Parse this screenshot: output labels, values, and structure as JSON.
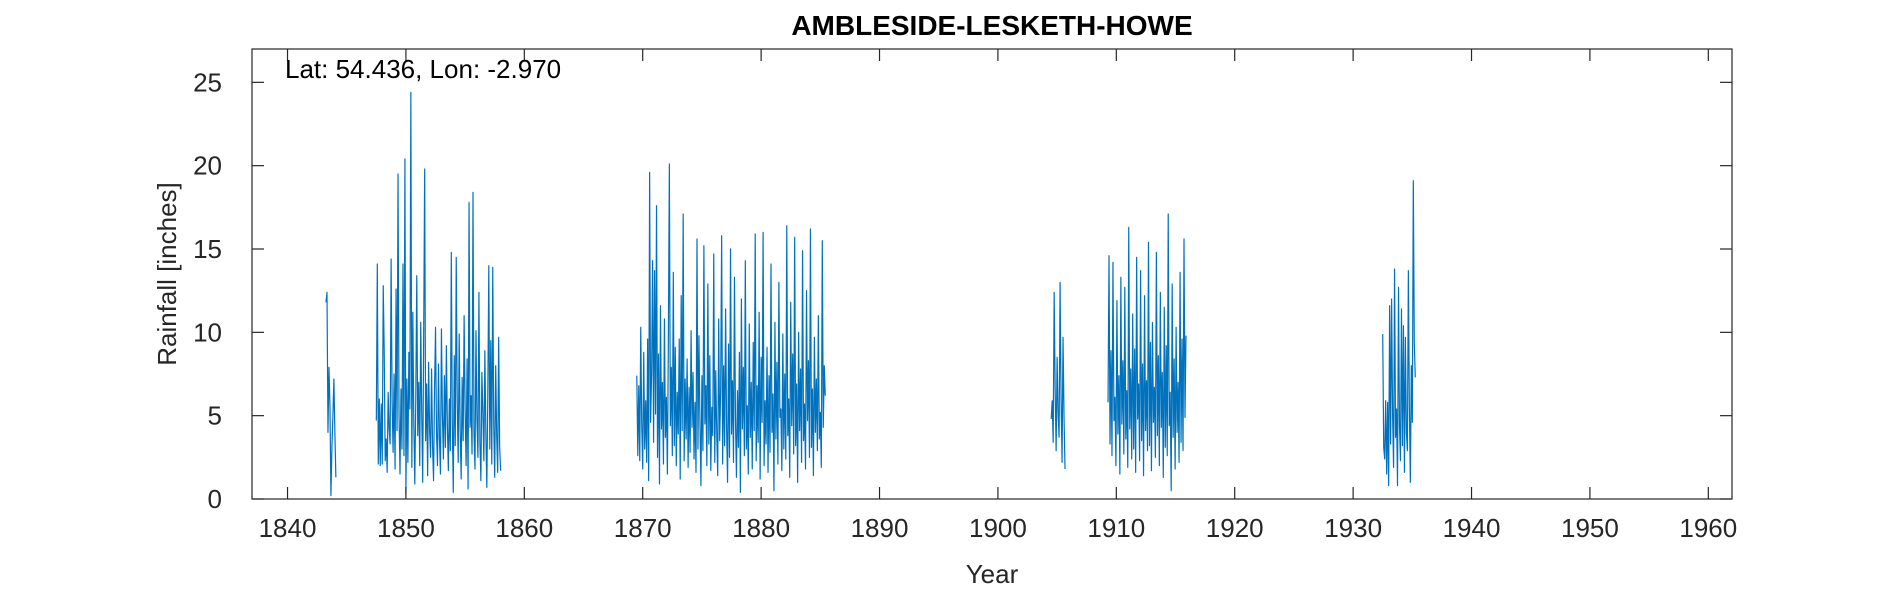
{
  "chart_data": {
    "type": "line",
    "title": "AMBLESIDE-LESKETH-HOWE",
    "xlabel": "Year",
    "ylabel": "Rainfall [inches]",
    "annotation": "Lat: 54.436, Lon: -2.970",
    "xlim": [
      1837,
      1962
    ],
    "ylim": [
      0,
      27
    ],
    "xticks": [
      1840,
      1850,
      1860,
      1870,
      1880,
      1890,
      1900,
      1910,
      1920,
      1930,
      1940,
      1950,
      1960
    ],
    "yticks": [
      0,
      5,
      10,
      15,
      20,
      25
    ],
    "grid": false,
    "line_color": "#0072BD",
    "series_points": "monthly values, approximate reading of the plotted line",
    "segments": [
      {
        "start": 1843.25,
        "values": [
          11.8,
          12.4,
          4.0,
          7.9,
          5.6,
          0.2,
          3.1,
          5.0,
          7.2,
          4.0,
          1.3
        ]
      },
      {
        "start": 1847.5,
        "values": [
          4.7,
          14.1,
          2.1,
          6.0,
          2.0,
          5.7,
          2.1,
          12.8,
          8.9,
          2.3,
          3.6,
          1.6,
          6.4,
          4.2,
          3.3,
          14.4,
          5.9,
          2.8,
          7.5,
          1.8,
          12.6,
          4.1,
          19.5,
          5.2,
          1.5,
          6.6,
          3.0,
          14.1,
          2.6,
          20.4,
          0.3,
          7.2,
          2.2,
          8.8,
          5.4,
          24.4,
          1.9,
          11.2,
          4.6,
          0.9,
          6.1,
          13.4,
          3.8,
          7.0,
          2.0,
          10.6,
          5.3,
          1.0,
          9.8,
          19.8,
          3.5,
          6.9,
          1.4,
          8.2,
          4.1,
          2.5,
          7.8,
          3.2,
          1.1,
          6.5,
          10.3,
          4.0,
          2.0,
          8.1,
          3.6,
          1.5,
          10.2,
          5.0,
          2.4,
          7.4,
          3.1,
          9.2,
          4.4,
          1.7,
          6.0,
          2.9,
          14.8,
          4.7,
          0.4,
          8.6,
          3.2,
          14.5,
          5.8,
          2.2,
          9.9,
          4.1,
          1.2,
          7.3,
          3.5,
          11.0,
          5.4,
          2.0,
          8.4,
          0.6,
          17.8,
          4.3,
          6.2,
          2.7,
          18.4,
          3.9,
          1.8,
          10.1,
          4.8,
          2.5,
          12.4,
          3.4,
          1.1,
          7.6,
          5.2,
          2.3,
          8.9,
          4.0,
          0.7,
          6.3,
          14.0,
          3.0,
          9.5,
          2.1,
          13.9,
          4.5,
          1.3,
          8.0,
          3.8,
          1.6,
          9.7,
          3.1,
          1.7
        ]
      },
      {
        "start": 1869.5,
        "values": [
          7.4,
          2.6,
          6.8,
          2.3,
          10.3,
          4.5,
          1.8,
          8.8,
          3.0,
          5.9,
          2.2,
          9.6,
          1.1,
          19.6,
          4.6,
          7.5,
          14.3,
          3.4,
          13.7,
          5.1,
          17.6,
          2.5,
          8.7,
          0.9,
          11.6,
          4.2,
          7.0,
          2.1,
          10.8,
          3.7,
          6.1,
          1.5,
          9.5,
          20.1,
          4.4,
          7.9,
          2.6,
          13.6,
          3.2,
          9.1,
          2.0,
          6.4,
          3.9,
          9.6,
          1.2,
          12.2,
          4.1,
          17.1,
          2.3,
          7.2,
          3.6,
          8.4,
          1.9,
          6.7,
          2.8,
          10.1,
          4.3,
          7.6,
          2.4,
          5.8,
          1.6,
          15.6,
          3.0,
          9.8,
          4.6,
          0.8,
          7.4,
          2.9,
          15.2,
          4.5,
          6.8,
          2.0,
          12.9,
          3.3,
          8.6,
          1.7,
          5.5,
          3.8,
          14.7,
          2.2,
          7.7,
          4.0,
          1.4,
          10.8,
          3.5,
          6.6,
          15.8,
          2.1,
          8.0,
          3.2,
          11.4,
          4.3,
          1.0,
          9.3,
          2.5,
          15.0,
          3.9,
          7.1,
          2.2,
          13.3,
          4.8,
          1.3,
          6.5,
          3.1,
          8.8,
          0.4,
          12.0,
          4.2,
          7.9,
          2.6,
          14.3,
          3.0,
          5.6,
          1.5,
          10.5,
          3.7,
          7.0,
          1.8,
          9.4,
          4.1,
          15.9,
          2.3,
          6.8,
          3.4,
          11.2,
          1.2,
          8.5,
          4.6,
          16.0,
          2.0,
          5.9,
          3.3,
          9.1,
          1.6,
          7.4,
          2.8,
          14.1,
          4.0,
          6.3,
          0.5,
          10.6,
          3.6,
          8.2,
          2.1,
          13.0,
          4.9,
          5.4,
          1.7,
          9.9,
          3.0,
          7.5,
          2.4,
          16.4,
          3.8,
          6.0,
          1.3,
          11.8,
          4.4,
          8.7,
          2.7,
          15.7,
          3.2,
          6.9,
          1.0,
          10.0,
          4.1,
          7.8,
          2.2,
          14.9,
          3.5,
          5.7,
          1.8,
          12.5,
          4.7,
          8.3,
          2.5,
          16.2,
          3.1,
          6.6,
          1.4,
          9.7,
          4.0,
          7.2,
          2.9,
          11.0,
          3.6,
          5.2,
          1.9,
          15.5,
          4.3,
          8.0,
          6.2
        ]
      },
      {
        "start": 1904.5,
        "values": [
          4.8,
          5.9,
          3.4,
          12.4,
          6.6,
          2.9,
          8.5,
          5.1,
          3.7,
          13.0,
          6.0,
          2.2,
          9.7,
          4.9,
          1.8
        ]
      },
      {
        "start": 1909.3,
        "values": [
          5.8,
          14.6,
          3.3,
          8.9,
          2.6,
          14.2,
          4.7,
          6.1,
          2.0,
          11.9,
          3.9,
          7.4,
          1.5,
          13.3,
          4.5,
          8.3,
          2.7,
          12.7,
          3.6,
          6.5,
          1.9,
          16.3,
          4.2,
          7.8,
          2.4,
          11.1,
          3.0,
          9.0,
          1.6,
          14.5,
          4.8,
          6.9,
          2.3,
          13.7,
          3.5,
          8.1,
          1.4,
          12.2,
          4.1,
          7.1,
          2.9,
          15.4,
          3.2,
          9.4,
          1.7,
          10.6,
          4.6,
          6.7,
          2.5,
          14.8,
          3.8,
          8.6,
          2.0,
          12.4,
          4.3,
          7.6,
          1.3,
          11.5,
          3.1,
          9.2,
          2.6,
          17.1,
          4.4,
          6.4,
          0.5,
          12.9,
          3.7,
          8.4,
          1.8,
          10.3,
          4.0,
          7.0,
          2.2,
          13.6,
          3.4,
          9.6,
          2.9,
          15.6,
          4.9,
          9.8
        ]
      },
      {
        "start": 1932.5,
        "values": [
          9.9,
          3.1,
          2.4,
          5.9,
          1.5,
          5.8,
          0.8,
          11.6,
          3.3,
          12.0,
          5.1,
          1.9,
          13.8,
          3.7,
          5.4,
          0.8,
          12.7,
          4.4,
          2.3,
          11.4,
          3.2,
          10.4,
          1.6,
          9.7,
          4.0,
          2.9,
          13.7,
          5.6,
          1.0,
          8.0,
          4.6,
          19.1,
          9.4,
          7.3
        ]
      }
    ]
  }
}
